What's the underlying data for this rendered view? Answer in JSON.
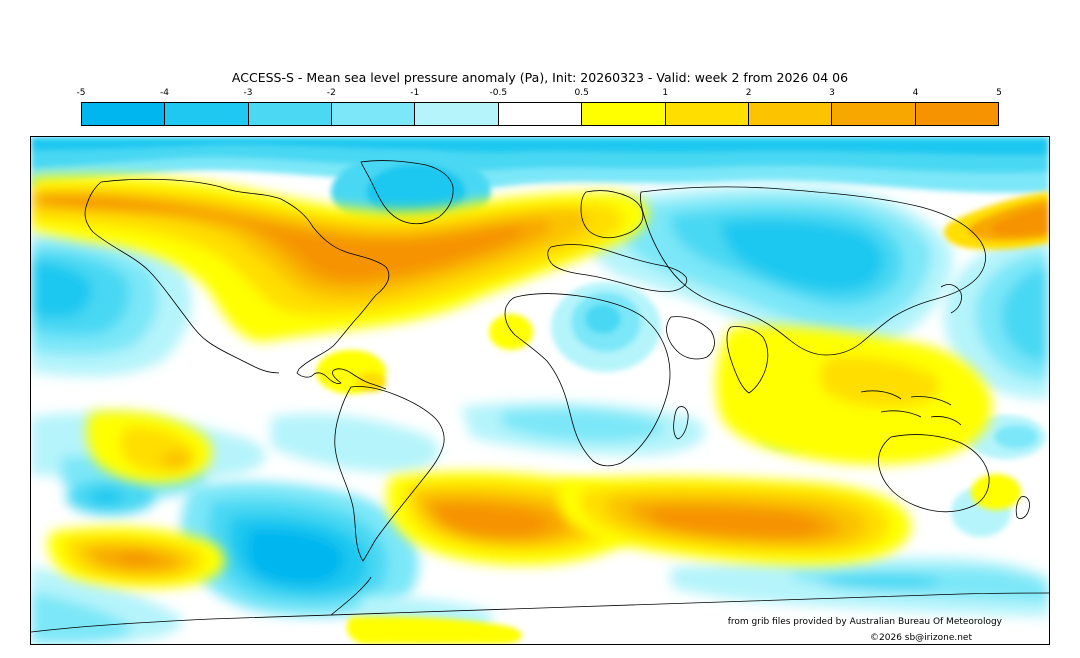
{
  "title": "ACCESS-S - Mean sea level pressure anomaly (Pa), Init: 20260323 - Valid: week 2 from 2026 04 06",
  "legend": {
    "tick_labels": [
      "-5",
      "-4",
      "-3",
      "-2",
      "-1",
      "-0.5",
      "0.5",
      "1",
      "2",
      "3",
      "4",
      "5"
    ],
    "colors": [
      "#00b6ef",
      "#1fc8f0",
      "#4ad8f3",
      "#7ce7f8",
      "#b5f4fb",
      "#ffffff",
      "#ffff00",
      "#ffde00",
      "#fbc300",
      "#f8a700",
      "#f59300"
    ]
  },
  "map": {
    "projection": "equirectangular",
    "fields": [
      {
        "region": "north-atlantic-north-america",
        "sign": "positive",
        "peak_category": "3 to 4"
      },
      {
        "region": "south-atlantic",
        "sign": "positive",
        "peak_category": "3 to 4"
      },
      {
        "region": "south-indian-ocean",
        "sign": "positive",
        "peak_category": "3 to 4"
      },
      {
        "region": "south-pacific-east",
        "sign": "positive",
        "peak_category": "3 to 4"
      },
      {
        "region": "north-pacific-west",
        "sign": "positive",
        "peak_category": "3 to 4"
      },
      {
        "region": "indonesia-maritime-continent",
        "sign": "positive",
        "peak_category": "0.5 to 1"
      },
      {
        "region": "eurasia-siberia",
        "sign": "negative",
        "peak_category": "-4 to -3"
      },
      {
        "region": "greenland-arctic",
        "sign": "negative",
        "peak_category": "-4 to -3"
      },
      {
        "region": "north-pacific-east",
        "sign": "negative",
        "peak_category": "-4 to -3"
      },
      {
        "region": "drake-passage-southern-ocean",
        "sign": "negative",
        "peak_category": "-5 to -4"
      }
    ]
  },
  "credits": {
    "source": "from grib files provided by Australian Bureau Of Meteorology",
    "copyright": "©2026 sb@irizone.net"
  }
}
